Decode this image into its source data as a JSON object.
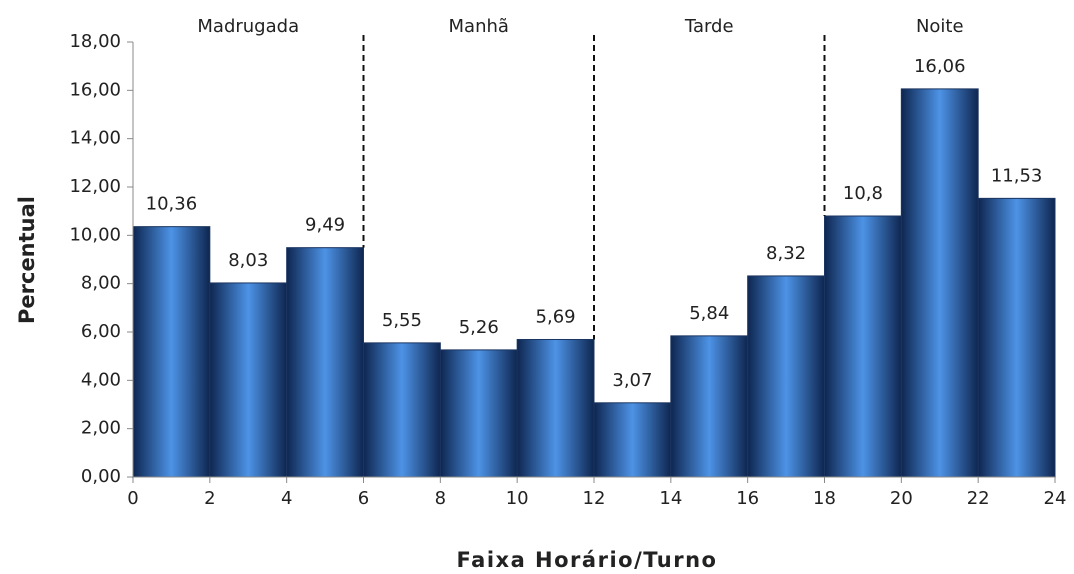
{
  "chart_data": {
    "type": "histogram",
    "x_label": "Faixa Horário/Turno",
    "y_label": "Percentual",
    "bins": [
      0,
      2,
      4,
      6,
      8,
      10,
      12,
      14,
      16,
      18,
      20,
      22,
      24
    ],
    "values": [
      10.36,
      8.03,
      9.49,
      5.55,
      5.26,
      5.69,
      3.07,
      5.84,
      8.32,
      10.8,
      16.06,
      11.53
    ],
    "value_labels": [
      "10,36",
      "8,03",
      "9,49",
      "5,55",
      "5,26",
      "5,69",
      "3,07",
      "5,84",
      "8,32",
      "10,8",
      "16,06",
      "11,53"
    ],
    "color": "#2f6bc0",
    "xlim": [
      0,
      24
    ],
    "xticks": [
      0,
      2,
      4,
      6,
      8,
      10,
      12,
      14,
      16,
      18,
      20,
      22,
      24
    ],
    "ylim": [
      0,
      18
    ],
    "yticks": [
      {
        "value": 0,
        "label": "0,00"
      },
      {
        "value": 2,
        "label": "2,00"
      },
      {
        "value": 4,
        "label": "4,00"
      },
      {
        "value": 6,
        "label": "6,00"
      },
      {
        "value": 8,
        "label": "8,00"
      },
      {
        "value": 10,
        "label": "10,00"
      },
      {
        "value": 12,
        "label": "12,00"
      },
      {
        "value": 14,
        "label": "14,00"
      },
      {
        "value": 16,
        "label": "16,00"
      },
      {
        "value": 18,
        "label": "18,00"
      }
    ],
    "dividers": [
      6,
      12,
      18
    ],
    "period_labels": [
      "Madrugada",
      "Manhã",
      "Tarde",
      "Noite"
    ]
  }
}
